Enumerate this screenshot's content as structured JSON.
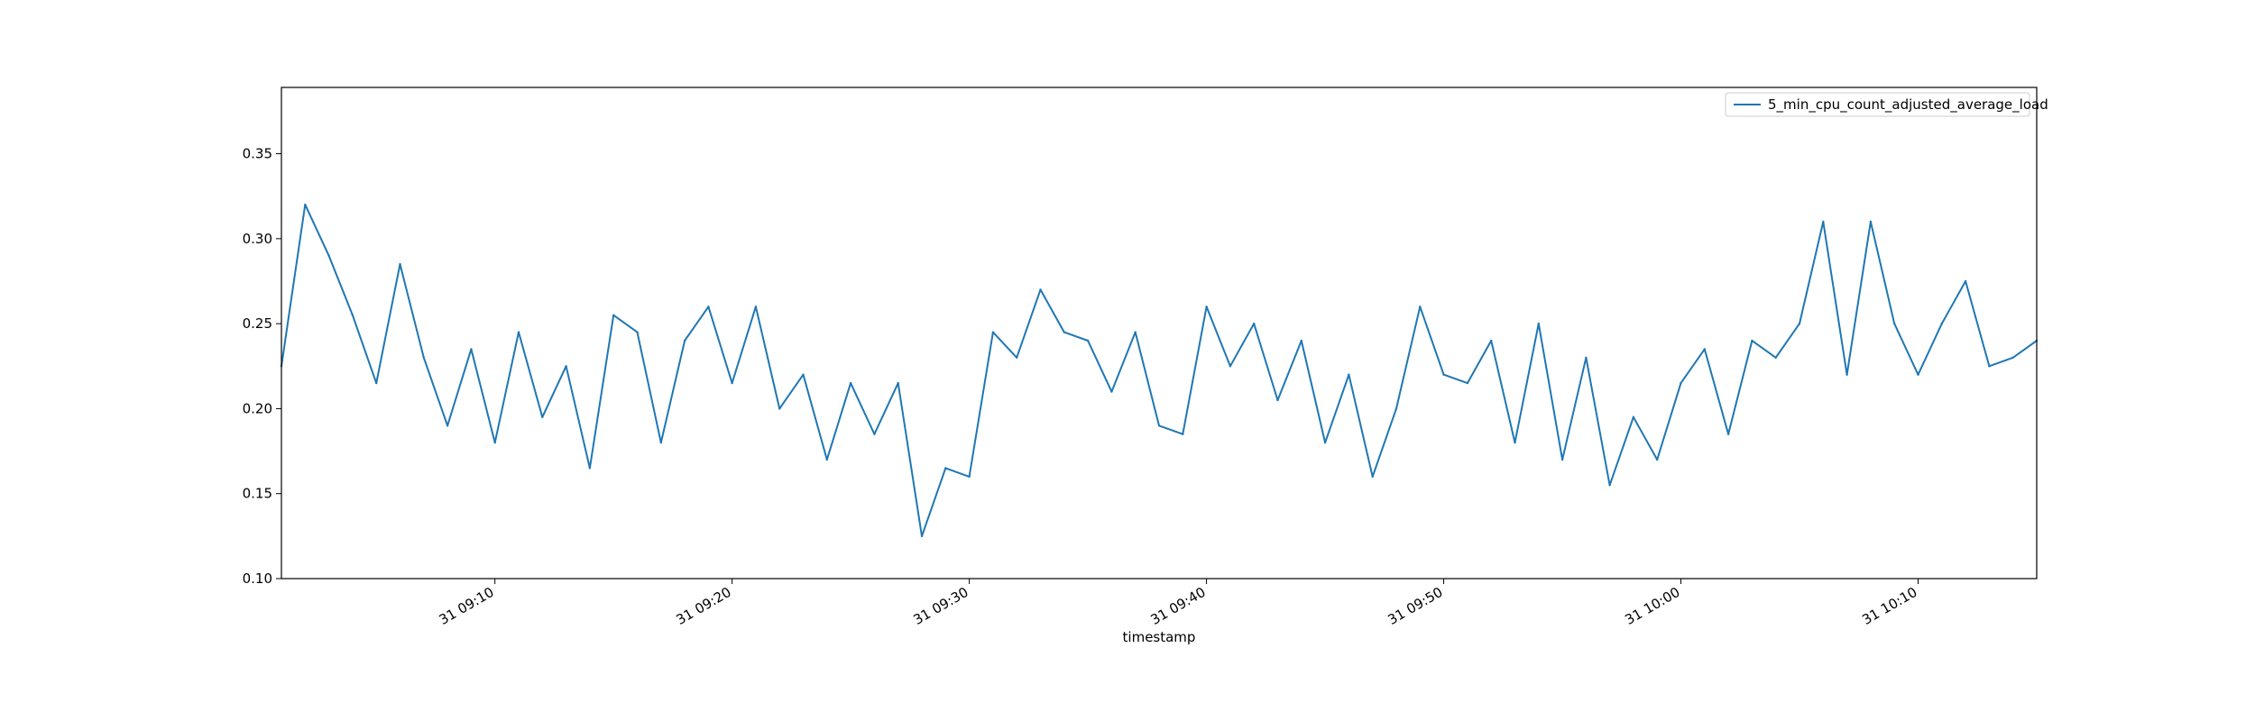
{
  "chart_data": {
    "type": "line",
    "title": "",
    "xlabel": "timestamp",
    "ylabel": "",
    "x_axis": {
      "kind": "time",
      "start": "31 09:01",
      "end": "31 10:15",
      "ticks": [
        "31 09:10",
        "31 09:20",
        "31 09:30",
        "31 09:40",
        "31 09:50",
        "31 10:00",
        "31 10:10"
      ]
    },
    "ylim": [
      0.1,
      0.389
    ],
    "yticks": [
      "0.10",
      "0.15",
      "0.20",
      "0.25",
      "0.30",
      "0.35"
    ],
    "ytick_values": [
      0.1,
      0.15,
      0.2,
      0.25,
      0.3,
      0.35
    ],
    "grid": false,
    "legend_position": "top-right",
    "colors": {
      "series": "#1f77b4",
      "axes": "#000000",
      "background": "#ffffff"
    },
    "series": [
      {
        "name": "5_min_cpu_count_adjusted_average_load",
        "x": [
          "31 09:01",
          "31 09:02",
          "31 09:03",
          "31 09:04",
          "31 09:05",
          "31 09:06",
          "31 09:07",
          "31 09:08",
          "31 09:09",
          "31 09:10",
          "31 09:11",
          "31 09:12",
          "31 09:13",
          "31 09:14",
          "31 09:15",
          "31 09:16",
          "31 09:17",
          "31 09:18",
          "31 09:19",
          "31 09:20",
          "31 09:21",
          "31 09:22",
          "31 09:23",
          "31 09:24",
          "31 09:25",
          "31 09:26",
          "31 09:27",
          "31 09:28",
          "31 09:29",
          "31 09:30",
          "31 09:31",
          "31 09:32",
          "31 09:33",
          "31 09:34",
          "31 09:35",
          "31 09:36",
          "31 09:37",
          "31 09:38",
          "31 09:39",
          "31 09:40",
          "31 09:41",
          "31 09:42",
          "31 09:43",
          "31 09:44",
          "31 09:45",
          "31 09:46",
          "31 09:47",
          "31 09:48",
          "31 09:49",
          "31 09:50",
          "31 09:51",
          "31 09:52",
          "31 09:53",
          "31 09:54",
          "31 09:55",
          "31 09:56",
          "31 09:57",
          "31 09:58",
          "31 09:59",
          "31 10:00",
          "31 10:01",
          "31 10:02",
          "31 10:03",
          "31 10:04",
          "31 10:05",
          "31 10:06",
          "31 10:07",
          "31 10:08",
          "31 10:09",
          "31 10:10",
          "31 10:11",
          "31 10:12",
          "31 10:13",
          "31 10:14",
          "31 10:15"
        ],
        "values": [
          0.225,
          0.32,
          0.29,
          0.255,
          0.215,
          0.285,
          0.23,
          0.19,
          0.235,
          0.18,
          0.245,
          0.195,
          0.225,
          0.165,
          0.255,
          0.245,
          0.18,
          0.24,
          0.26,
          0.215,
          0.26,
          0.2,
          0.22,
          0.17,
          0.215,
          0.185,
          0.215,
          0.125,
          0.165,
          0.16,
          0.245,
          0.23,
          0.27,
          0.245,
          0.24,
          0.21,
          0.245,
          0.19,
          0.185,
          0.26,
          0.225,
          0.25,
          0.205,
          0.24,
          0.18,
          0.22,
          0.16,
          0.2,
          0.26,
          0.22,
          0.215,
          0.24,
          0.18,
          0.25,
          0.17,
          0.23,
          0.155,
          0.195,
          0.17,
          0.215,
          0.235,
          0.185,
          0.24,
          0.23,
          0.25,
          0.31,
          0.22,
          0.31,
          0.25,
          0.22,
          0.25,
          0.275,
          0.225,
          0.23,
          0.24
        ]
      }
    ]
  }
}
